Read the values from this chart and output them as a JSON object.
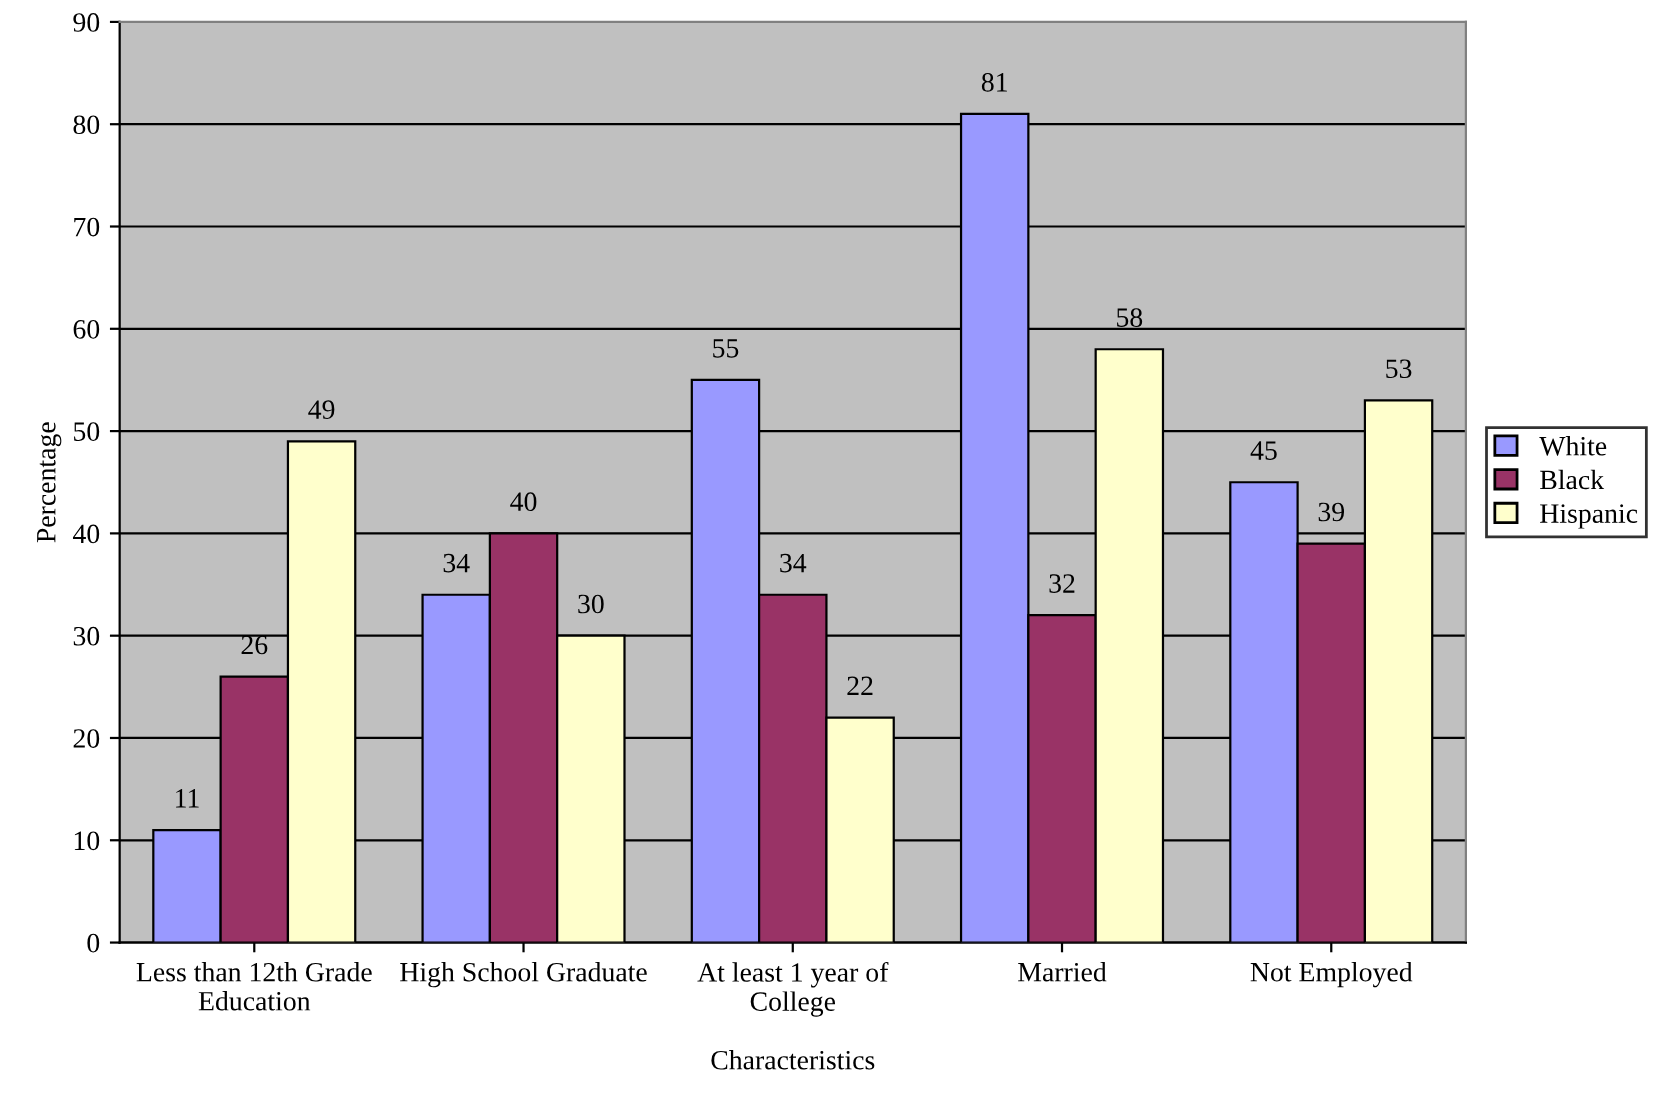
{
  "chart_data": {
    "type": "bar",
    "xlabel": "Characteristics",
    "ylabel": "Percentage",
    "categories": [
      "Less than 12th Grade\nEducation",
      "High School Graduate",
      "At least 1 year of\nCollege",
      "Married",
      "Not Employed"
    ],
    "series": [
      {
        "name": "White",
        "color": "#9999ff",
        "values": [
          11,
          34,
          55,
          81,
          45
        ]
      },
      {
        "name": "Black",
        "color": "#993366",
        "values": [
          26,
          40,
          34,
          32,
          39
        ]
      },
      {
        "name": "Hispanic",
        "color": "#ffffcc",
        "values": [
          49,
          30,
          22,
          58,
          53
        ]
      }
    ],
    "ylim": [
      0,
      90
    ],
    "yticks": [
      0,
      10,
      20,
      30,
      40,
      50,
      60,
      70,
      80,
      90
    ],
    "grid": "y",
    "legend": "right",
    "data_labels": true
  }
}
